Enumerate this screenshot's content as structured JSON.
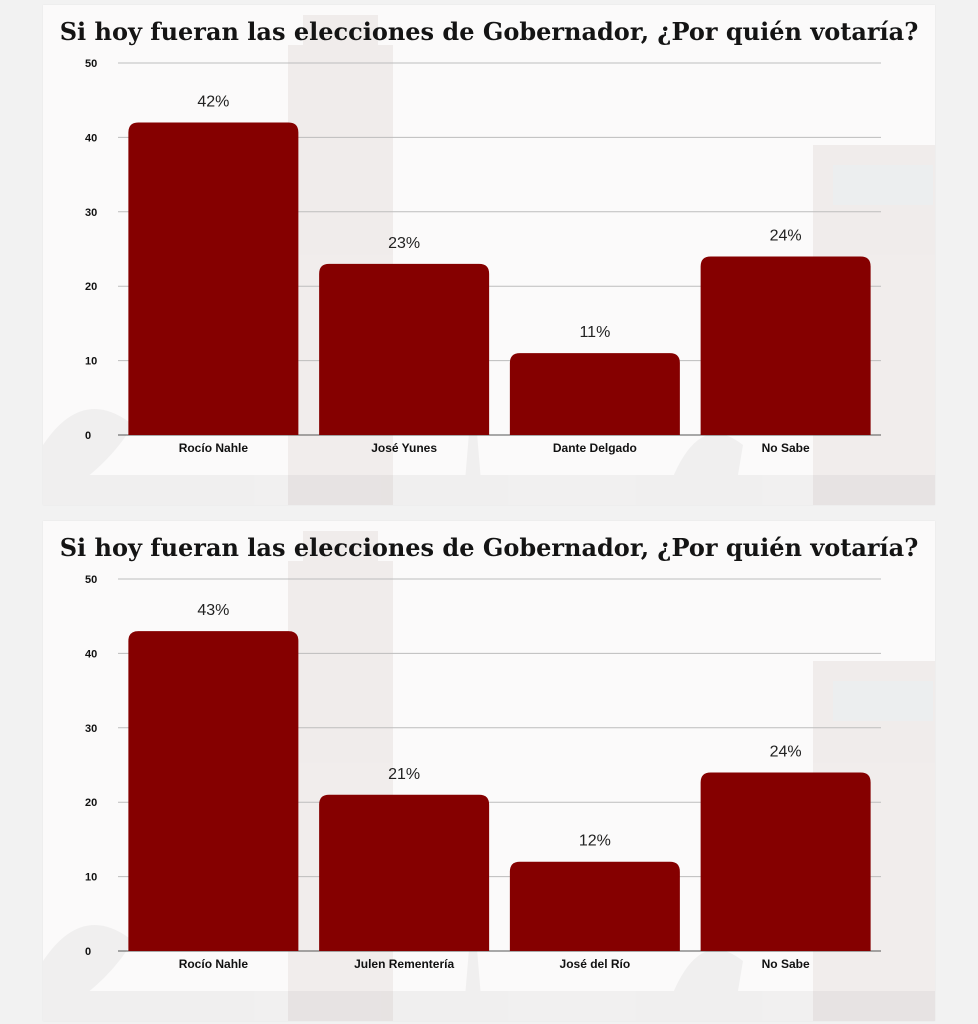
{
  "chart_data": [
    {
      "type": "bar",
      "title": "Si hoy fueran las elecciones de Gobernador, ¿Por quién votaría?",
      "categories": [
        "Rocío Nahle",
        "José Yunes",
        "Dante Delgado",
        "No Sabe"
      ],
      "values": [
        42,
        23,
        11,
        24
      ],
      "data_labels": [
        "42%",
        "23%",
        "11%",
        "24%"
      ],
      "yticks": [
        0,
        10,
        20,
        30,
        40,
        50
      ],
      "ylim": [
        0,
        50
      ],
      "xlabel": "",
      "ylabel": "",
      "grid": true,
      "bar_color": "#850000"
    },
    {
      "type": "bar",
      "title": "Si hoy fueran las elecciones de Gobernador, ¿Por quién votaría?",
      "categories": [
        "Rocío Nahle",
        "Julen Rementería",
        "José del Río",
        "No Sabe"
      ],
      "values": [
        43,
        21,
        12,
        24
      ],
      "data_labels": [
        "43%",
        "21%",
        "12%",
        "24%"
      ],
      "yticks": [
        0,
        10,
        20,
        30,
        40,
        50
      ],
      "ylim": [
        0,
        50
      ],
      "xlabel": "",
      "ylabel": "",
      "grid": true,
      "bar_color": "#850000"
    }
  ]
}
